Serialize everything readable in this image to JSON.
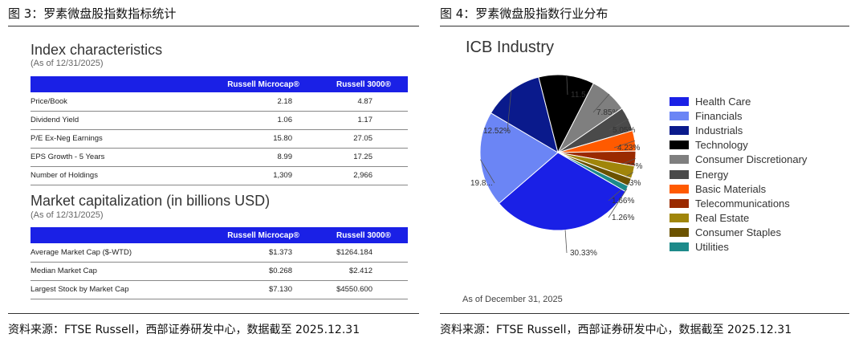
{
  "left_figure": {
    "title": "图 3：罗素微盘股指数指标统计",
    "source": "资料来源：FTSE Russell，西部证券研发中心，数据截至 2025.12.31",
    "characteristics": {
      "title": "Index characteristics",
      "subtitle": "(As of 12/31/2025)",
      "headers": [
        "",
        "Russell Microcap®",
        "Russell 3000®"
      ],
      "rows": [
        {
          "label": "Price/Book",
          "v1": "2.18",
          "v2": "4.87"
        },
        {
          "label": "Dividend Yield",
          "v1": "1.06",
          "v2": "1.17"
        },
        {
          "label": "P/E Ex-Neg Earnings",
          "v1": "15.80",
          "v2": "27.05"
        },
        {
          "label": "EPS Growth - 5 Years",
          "v1": "8.99",
          "v2": "17.25"
        },
        {
          "label": "Number of Holdings",
          "v1": "1,309",
          "v2": "2,966"
        }
      ]
    },
    "market_cap": {
      "title": "Market capitalization (in billions USD)",
      "subtitle": "(As of 12/31/2025)",
      "headers": [
        "",
        "Russell Microcap®",
        "Russell 3000®"
      ],
      "rows": [
        {
          "label": "Average Market Cap ($-WTD)",
          "v1": "$1.373",
          "v2": "$1264.184"
        },
        {
          "label": "Median Market Cap",
          "v1": "$0.268",
          "v2": "$2.412"
        },
        {
          "label": "Largest Stock by Market Cap",
          "v1": "$7.130",
          "v2": "$4550.600"
        }
      ]
    }
  },
  "right_figure": {
    "title": "图 4：罗素微盘股指数行业分布",
    "source": "资料来源：FTSE Russell，西部证券研发中心，数据截至 2025.12.31",
    "note": "As of December 31, 2025"
  },
  "chart_data": {
    "type": "pie",
    "title": "ICB Industry",
    "legend_position": "right",
    "slices": [
      {
        "name": "Health Care",
        "value": 30.33,
        "label": "30.33%",
        "color": "#1a20e6"
      },
      {
        "name": "Financials",
        "value": 19.8,
        "label": "19.8...",
        "color": "#6b85f5"
      },
      {
        "name": "Industrials",
        "value": 12.52,
        "label": "12.52%",
        "color": "#0a1a8c"
      },
      {
        "name": "Technology",
        "value": 11.54,
        "label": "11.54%",
        "color": "#000000"
      },
      {
        "name": "Consumer Discretionary",
        "value": 7.85,
        "label": "7.85%",
        "color": "#7f7f7f"
      },
      {
        "name": "Energy",
        "value": 5.05,
        "label": "5.05%",
        "color": "#4a4a4a"
      },
      {
        "name": "Basic Materials",
        "value": 4.23,
        "label": "4.23%",
        "color": "#ff5a00"
      },
      {
        "name": "Telecommunications",
        "value": 3.09,
        "label": "3.09%",
        "color": "#9a2a00"
      },
      {
        "name": "Real Estate",
        "value": 2.63,
        "label": "2.63%",
        "color": "#a0850a"
      },
      {
        "name": "Consumer Staples",
        "value": 1.66,
        "label": "1.66%",
        "color": "#6b5200"
      },
      {
        "name": "Utilities",
        "value": 1.26,
        "label": "1.26%",
        "color": "#1d8a8a"
      }
    ]
  }
}
